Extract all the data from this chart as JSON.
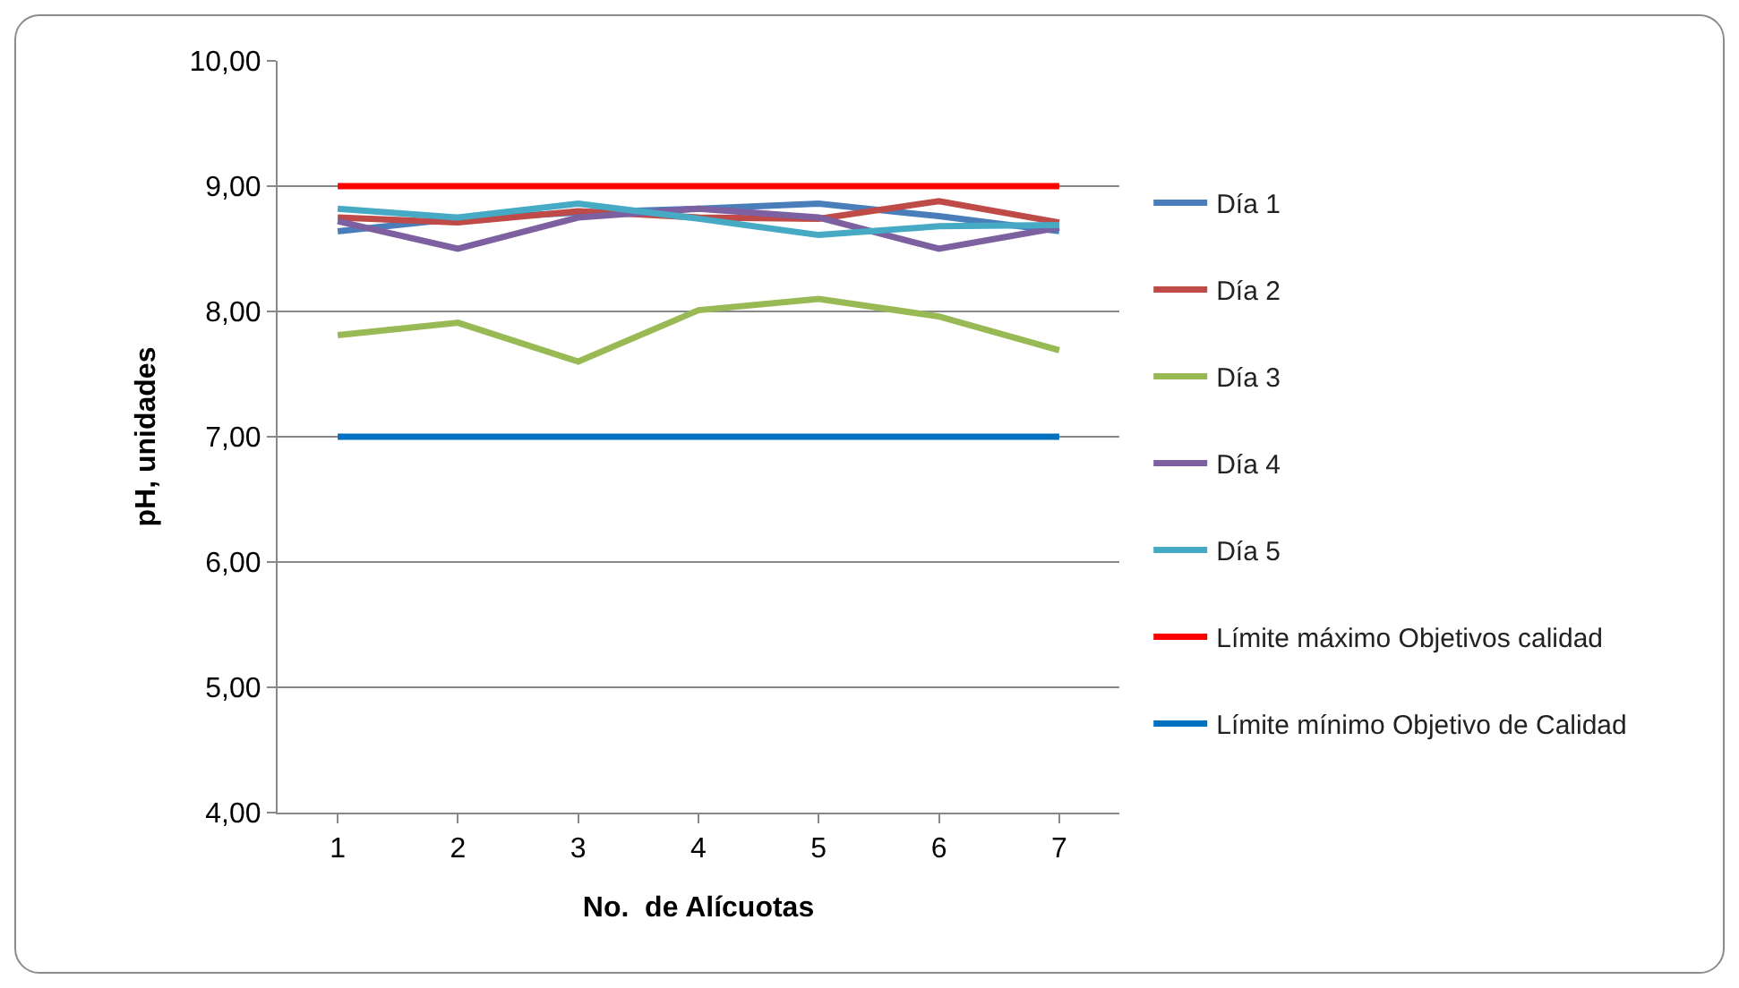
{
  "chart_data": {
    "type": "line",
    "xlabel": "No.  de Alícuotas",
    "ylabel": "pH, unidades",
    "categories": [
      "1",
      "2",
      "3",
      "4",
      "5",
      "6",
      "7"
    ],
    "series": [
      {
        "name": "Día 1",
        "color": "#4a7ebb",
        "values": [
          8.64,
          8.74,
          8.79,
          8.82,
          8.86,
          8.76,
          8.64
        ]
      },
      {
        "name": "Día 2",
        "color": "#be4b48",
        "values": [
          8.75,
          8.71,
          8.8,
          8.75,
          8.74,
          8.88,
          8.71
        ]
      },
      {
        "name": "Día 3",
        "color": "#98b954",
        "values": [
          7.81,
          7.91,
          7.6,
          8.01,
          8.1,
          7.96,
          7.69
        ]
      },
      {
        "name": "Día 4",
        "color": "#7d60a0",
        "values": [
          8.72,
          8.5,
          8.75,
          8.82,
          8.75,
          8.5,
          8.67
        ]
      },
      {
        "name": "Día 5",
        "color": "#46aac5",
        "values": [
          8.82,
          8.75,
          8.86,
          8.74,
          8.61,
          8.68,
          8.69
        ]
      },
      {
        "name": "Límite máximo Objetivos calidad",
        "color": "#ff0000",
        "values": [
          9,
          9,
          9,
          9,
          9,
          9,
          9
        ]
      },
      {
        "name": "Límite mínimo Objetivo de Calidad",
        "color": "#0070c0",
        "values": [
          7,
          7,
          7,
          7,
          7,
          7,
          7
        ]
      }
    ],
    "ylim": [
      4,
      10
    ],
    "yticks": [
      {
        "value": 4,
        "label": "4,00"
      },
      {
        "value": 5,
        "label": "5,00"
      },
      {
        "value": 6,
        "label": "6,00"
      },
      {
        "value": 7,
        "label": "7,00"
      },
      {
        "value": 8,
        "label": "8,00"
      },
      {
        "value": 9,
        "label": "9,00"
      },
      {
        "value": 10,
        "label": "10,00"
      }
    ],
    "grid": "y",
    "legend": "right",
    "marker": "none",
    "line_style": "solid"
  }
}
